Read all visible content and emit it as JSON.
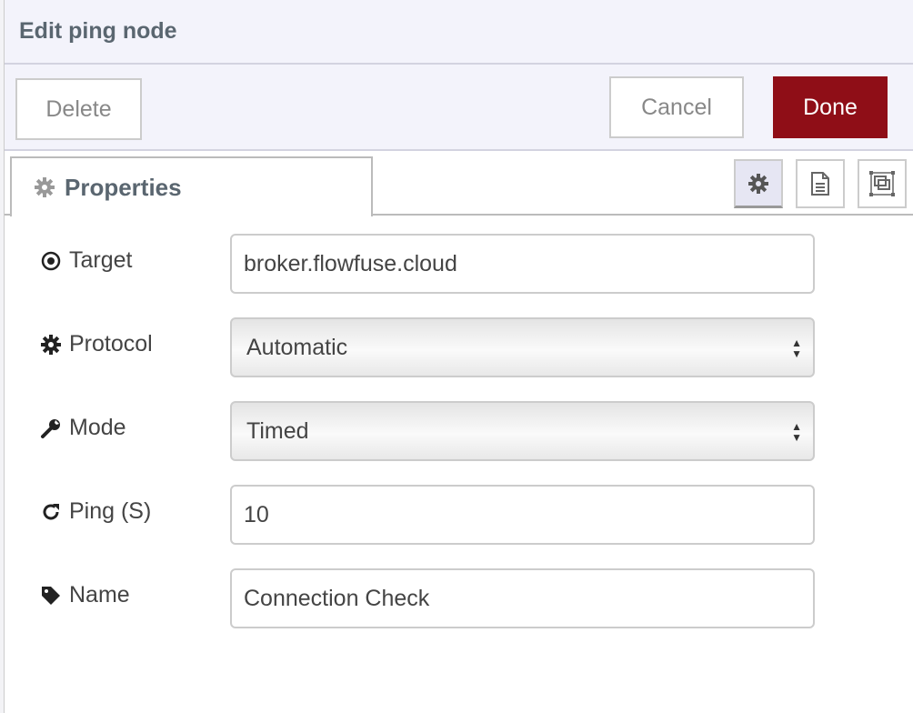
{
  "header": {
    "title": "Edit ping node"
  },
  "toolbar": {
    "delete_label": "Delete",
    "cancel_label": "Cancel",
    "done_label": "Done",
    "done_color": "#8f0e17"
  },
  "tabs": {
    "properties_label": "Properties",
    "icons": [
      "gear-icon",
      "document-icon",
      "frame-icon"
    ]
  },
  "form": {
    "target": {
      "label": "Target",
      "value": "broker.flowfuse.cloud"
    },
    "protocol": {
      "label": "Protocol",
      "value": "Automatic"
    },
    "mode": {
      "label": "Mode",
      "value": "Timed"
    },
    "ping": {
      "label": "Ping (S)",
      "value": "10"
    },
    "name": {
      "label": "Name",
      "value": "Connection Check"
    }
  }
}
